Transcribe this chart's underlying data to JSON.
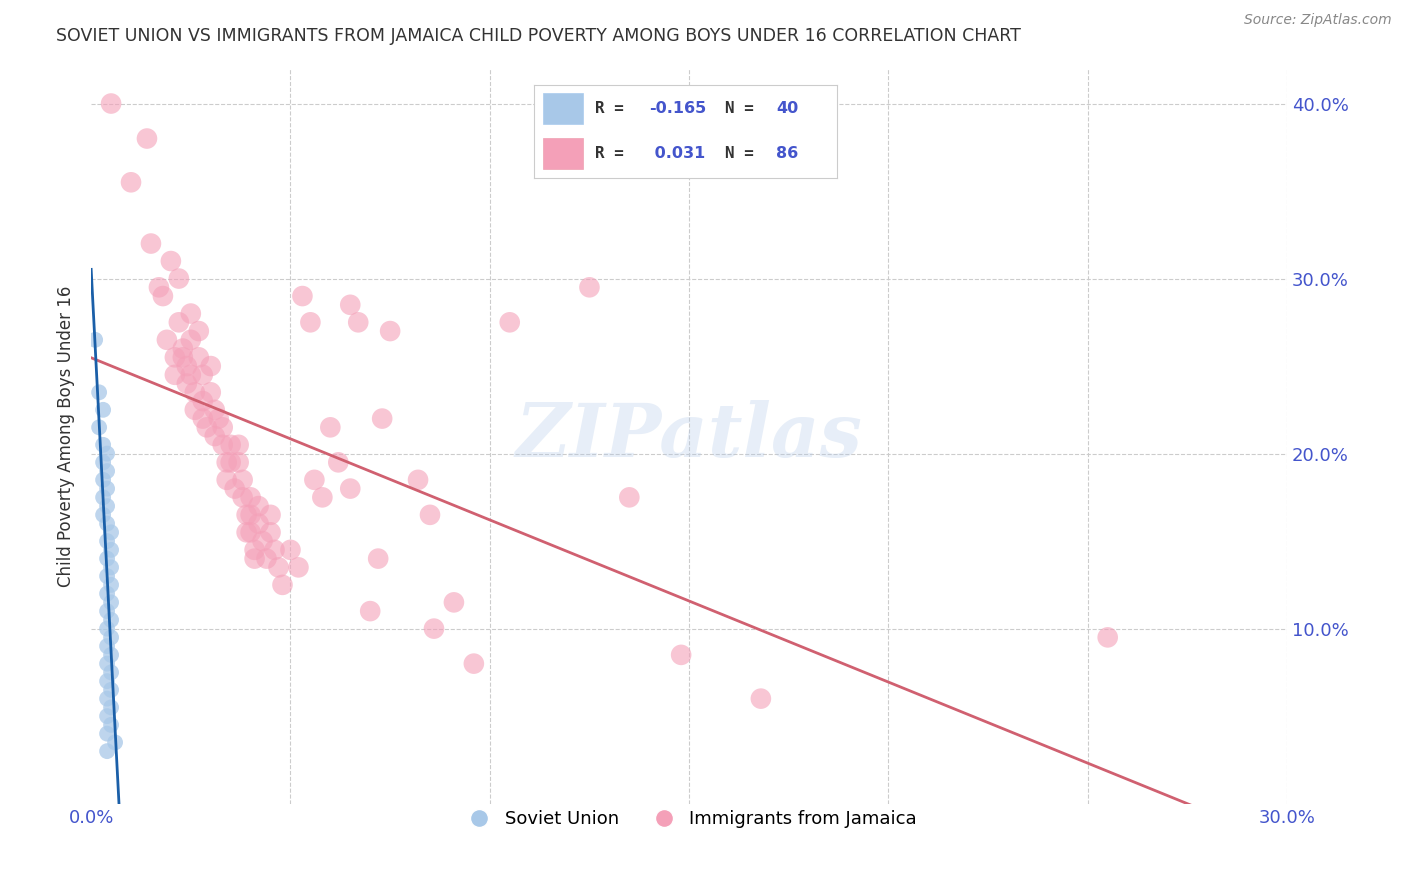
{
  "title": "SOVIET UNION VS IMMIGRANTS FROM JAMAICA CHILD POVERTY AMONG BOYS UNDER 16 CORRELATION CHART",
  "source": "Source: ZipAtlas.com",
  "ylabel": "Child Poverty Among Boys Under 16",
  "xlim": [
    0.0,
    0.3
  ],
  "ylim": [
    0.0,
    0.42
  ],
  "xticks": [
    0.0,
    0.05,
    0.1,
    0.15,
    0.2,
    0.25,
    0.3
  ],
  "yticks": [
    0.0,
    0.1,
    0.2,
    0.3,
    0.4
  ],
  "watermark": "ZIPatlas",
  "soviet_color": "#a8c8e8",
  "jamaica_color": "#f4a0b8",
  "soviet_line_color": "#1a5fa8",
  "soviet_line_dash_color": "#6090c8",
  "jamaica_line_color": "#d06070",
  "background_color": "#ffffff",
  "grid_color": "#cccccc",
  "title_color": "#333333",
  "tick_color": "#4455cc",
  "soviet_scatter": [
    [
      0.001,
      0.265
    ],
    [
      0.002,
      0.235
    ],
    [
      0.002,
      0.215
    ],
    [
      0.003,
      0.225
    ],
    [
      0.003,
      0.205
    ],
    [
      0.003,
      0.195
    ],
    [
      0.003,
      0.185
    ],
    [
      0.003,
      0.175
    ],
    [
      0.003,
      0.165
    ],
    [
      0.004,
      0.2
    ],
    [
      0.004,
      0.19
    ],
    [
      0.004,
      0.18
    ],
    [
      0.004,
      0.17
    ],
    [
      0.004,
      0.16
    ],
    [
      0.004,
      0.15
    ],
    [
      0.004,
      0.14
    ],
    [
      0.004,
      0.13
    ],
    [
      0.004,
      0.12
    ],
    [
      0.004,
      0.11
    ],
    [
      0.004,
      0.1
    ],
    [
      0.004,
      0.09
    ],
    [
      0.004,
      0.08
    ],
    [
      0.004,
      0.07
    ],
    [
      0.004,
      0.06
    ],
    [
      0.004,
      0.05
    ],
    [
      0.004,
      0.04
    ],
    [
      0.004,
      0.03
    ],
    [
      0.005,
      0.155
    ],
    [
      0.005,
      0.145
    ],
    [
      0.005,
      0.135
    ],
    [
      0.005,
      0.125
    ],
    [
      0.005,
      0.115
    ],
    [
      0.005,
      0.105
    ],
    [
      0.005,
      0.095
    ],
    [
      0.005,
      0.085
    ],
    [
      0.005,
      0.075
    ],
    [
      0.005,
      0.065
    ],
    [
      0.005,
      0.055
    ],
    [
      0.005,
      0.045
    ],
    [
      0.006,
      0.035
    ]
  ],
  "jamaica_scatter": [
    [
      0.005,
      0.4
    ],
    [
      0.01,
      0.355
    ],
    [
      0.014,
      0.38
    ],
    [
      0.015,
      0.32
    ],
    [
      0.017,
      0.295
    ],
    [
      0.018,
      0.29
    ],
    [
      0.019,
      0.265
    ],
    [
      0.02,
      0.31
    ],
    [
      0.021,
      0.255
    ],
    [
      0.021,
      0.245
    ],
    [
      0.022,
      0.3
    ],
    [
      0.022,
      0.275
    ],
    [
      0.023,
      0.26
    ],
    [
      0.023,
      0.255
    ],
    [
      0.024,
      0.25
    ],
    [
      0.024,
      0.24
    ],
    [
      0.025,
      0.28
    ],
    [
      0.025,
      0.265
    ],
    [
      0.025,
      0.245
    ],
    [
      0.026,
      0.235
    ],
    [
      0.026,
      0.225
    ],
    [
      0.027,
      0.27
    ],
    [
      0.027,
      0.255
    ],
    [
      0.028,
      0.245
    ],
    [
      0.028,
      0.23
    ],
    [
      0.028,
      0.22
    ],
    [
      0.029,
      0.215
    ],
    [
      0.03,
      0.25
    ],
    [
      0.03,
      0.235
    ],
    [
      0.031,
      0.225
    ],
    [
      0.031,
      0.21
    ],
    [
      0.032,
      0.22
    ],
    [
      0.033,
      0.215
    ],
    [
      0.033,
      0.205
    ],
    [
      0.034,
      0.195
    ],
    [
      0.034,
      0.185
    ],
    [
      0.035,
      0.205
    ],
    [
      0.035,
      0.195
    ],
    [
      0.036,
      0.18
    ],
    [
      0.037,
      0.205
    ],
    [
      0.037,
      0.195
    ],
    [
      0.038,
      0.185
    ],
    [
      0.038,
      0.175
    ],
    [
      0.039,
      0.165
    ],
    [
      0.039,
      0.155
    ],
    [
      0.04,
      0.175
    ],
    [
      0.04,
      0.165
    ],
    [
      0.04,
      0.155
    ],
    [
      0.041,
      0.145
    ],
    [
      0.041,
      0.14
    ],
    [
      0.042,
      0.17
    ],
    [
      0.042,
      0.16
    ],
    [
      0.043,
      0.15
    ],
    [
      0.044,
      0.14
    ],
    [
      0.045,
      0.165
    ],
    [
      0.045,
      0.155
    ],
    [
      0.046,
      0.145
    ],
    [
      0.047,
      0.135
    ],
    [
      0.048,
      0.125
    ],
    [
      0.05,
      0.145
    ],
    [
      0.052,
      0.135
    ],
    [
      0.053,
      0.29
    ],
    [
      0.055,
      0.275
    ],
    [
      0.056,
      0.185
    ],
    [
      0.058,
      0.175
    ],
    [
      0.06,
      0.215
    ],
    [
      0.062,
      0.195
    ],
    [
      0.065,
      0.285
    ],
    [
      0.065,
      0.18
    ],
    [
      0.067,
      0.275
    ],
    [
      0.07,
      0.11
    ],
    [
      0.072,
      0.14
    ],
    [
      0.073,
      0.22
    ],
    [
      0.075,
      0.27
    ],
    [
      0.082,
      0.185
    ],
    [
      0.085,
      0.165
    ],
    [
      0.086,
      0.1
    ],
    [
      0.091,
      0.115
    ],
    [
      0.096,
      0.08
    ],
    [
      0.105,
      0.275
    ],
    [
      0.125,
      0.295
    ],
    [
      0.135,
      0.175
    ],
    [
      0.148,
      0.085
    ],
    [
      0.168,
      0.06
    ],
    [
      0.255,
      0.095
    ]
  ],
  "soviet_trend": [
    -14.0,
    0.215
  ],
  "jamaica_trend": [
    0.065,
    0.192
  ],
  "soviet_trend_end_x": 0.008
}
